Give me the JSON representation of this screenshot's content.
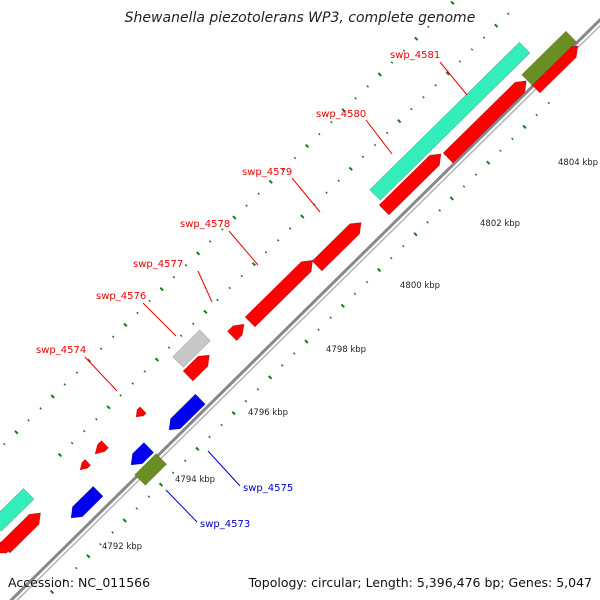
{
  "title": "Shewanella piezotolerans WP3, complete genome",
  "footer": {
    "accession": "Accession: NC_011566",
    "summary": "Topology: circular; Length: 5,396,476 bp; Genes: 5,047"
  },
  "colors": {
    "cds_red": "#ff0000",
    "cds_blue": "#0000ee",
    "rna_cyan": "#33eebb",
    "olive": "#6b8e23",
    "gray_feature": "#c8c8c8",
    "backbone": "#888888",
    "tick_green": "#1a7a1a",
    "label_red": "#ee0000",
    "label_blue": "#0000cc"
  },
  "ticks": [
    {
      "label": "4792 kbp"
    },
    {
      "label": "4794 kbp"
    },
    {
      "label": "4796 kbp"
    },
    {
      "label": "4798 kbp"
    },
    {
      "label": "4800 kbp"
    },
    {
      "label": "4802 kbp"
    },
    {
      "label": "4804 kbp"
    }
  ],
  "gene_labels": [
    {
      "text": "swp_4574",
      "color": "red"
    },
    {
      "text": "swp_4576",
      "color": "red"
    },
    {
      "text": "swp_4577",
      "color": "red"
    },
    {
      "text": "swp_4578",
      "color": "red"
    },
    {
      "text": "swp_4579",
      "color": "red"
    },
    {
      "text": "swp_4580",
      "color": "red"
    },
    {
      "text": "swp_4581",
      "color": "red"
    },
    {
      "text": "swp_4575",
      "color": "blue"
    },
    {
      "text": "swp_4573",
      "color": "blue"
    }
  ]
}
